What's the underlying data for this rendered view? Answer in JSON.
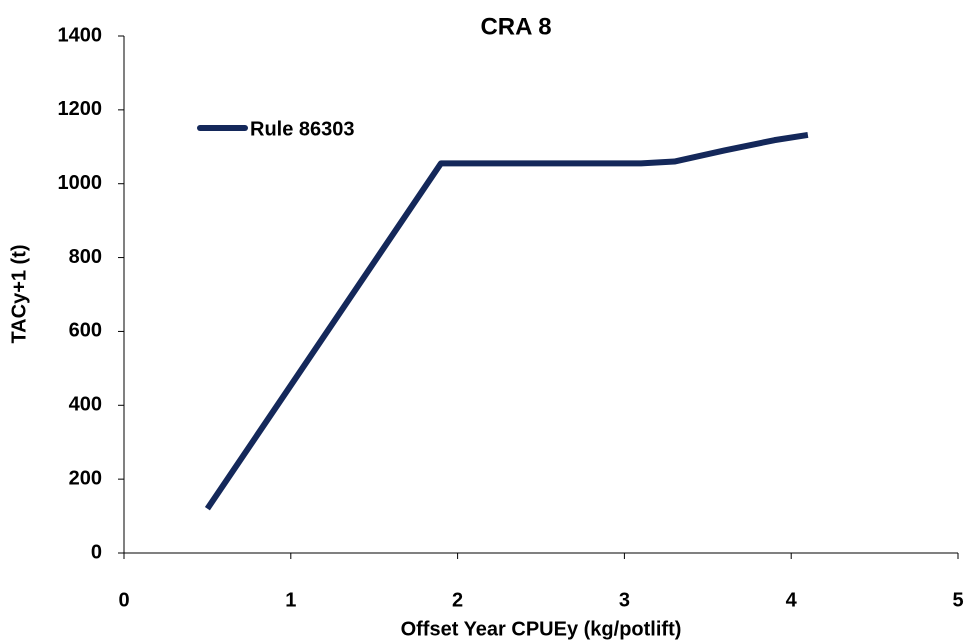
{
  "chart_data": {
    "type": "line",
    "title": "CRA 8",
    "x_label": "Offset Year CPUEy  (kg/potlift)",
    "y_label": "TACy+1 (t)",
    "x": [
      0.5,
      1.9,
      3.1,
      3.3,
      3.6,
      3.9,
      4.1
    ],
    "series": [
      {
        "name": "Rule 86303",
        "color": "#14285a",
        "values": [
          120,
          1055,
          1055,
          1060,
          1090,
          1118,
          1132
        ]
      }
    ],
    "xlim": [
      0,
      5
    ],
    "xticks": [
      0,
      1,
      2,
      3,
      4,
      5
    ],
    "ylim": [
      0,
      1400
    ],
    "yticks": [
      0,
      200,
      400,
      600,
      800,
      1000,
      1200,
      1400
    ],
    "grid": false,
    "legend": "upper-left"
  }
}
